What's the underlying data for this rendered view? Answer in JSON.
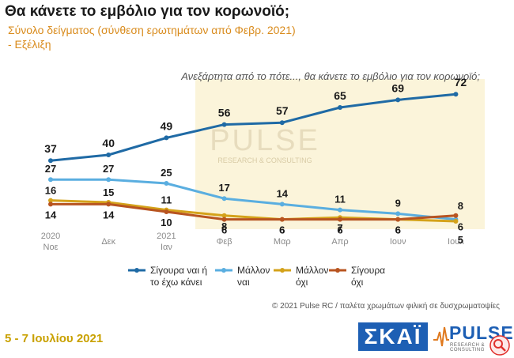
{
  "title": "Θα κάνετε το εμβόλιο για τον κορωνοϊό;",
  "subtitle_line1": "Σύνολο δείγματος (σύνθεση ερωτημάτων από Φεβρ. 2021)",
  "subtitle_line2": " - Εξέλιξη",
  "date_text": "5 - 7 Ιουλίου  2021",
  "credit": "© 2021 Pulse RC  /  παλέτα χρωμάτων φιλική σε δυσχρωματοψίες",
  "logo_skai": "ΣΚΑΪ",
  "logo_pulse": "PULSE",
  "logo_pulse_tagline": "RESEARCH & CONSULTING",
  "watermark_word": "PULSE",
  "watermark_tagline": "RESEARCH & CONSULTING",
  "chart_data": {
    "type": "line",
    "annotation": "Ανεξάρτητα από το πότε..., θα κάνετε το εμβόλιο για τον κορωνοϊό;",
    "x": [
      [
        "2020",
        "Νοε"
      ],
      [
        "Δεκ"
      ],
      [
        "2021",
        "Ιαν"
      ],
      [
        "Φεβ"
      ],
      [
        "Μαρ"
      ],
      [
        "Απρ"
      ],
      [
        "Ιουν"
      ],
      [
        "Ιουλ"
      ]
    ],
    "highlight_from_index": 3,
    "ylim": [
      0,
      80
    ],
    "grid": false,
    "legend_position": "bottom",
    "series": [
      {
        "name": "Σίγουρα ναι ή το έχω κάνει",
        "legend_lines": [
          "Σίγουρα ναι ή",
          "το έχω κάνει"
        ],
        "color": "#1f6aa5",
        "values": [
          37,
          40,
          49,
          56,
          57,
          65,
          69,
          72
        ]
      },
      {
        "name": "Μάλλον ναι",
        "legend_lines": [
          "Μάλλον",
          "ναι"
        ],
        "color": "#5aaee0",
        "values": [
          27,
          27,
          25,
          17,
          14,
          11,
          9,
          6
        ]
      },
      {
        "name": "Μάλλον όχι",
        "legend_lines": [
          "Μάλλον",
          "όχι"
        ],
        "color": "#d4a21a",
        "values": [
          16,
          15,
          11,
          8,
          6,
          7,
          6,
          5
        ]
      },
      {
        "name": "Σίγουρα όχι",
        "legend_lines": [
          "Σίγουρα",
          "όχι"
        ],
        "color": "#b85420",
        "values": [
          14,
          14,
          10,
          6,
          6,
          6,
          6,
          8
        ]
      }
    ],
    "data_labels": [
      [
        "37",
        "40",
        "49",
        "56",
        "57",
        "65",
        "69",
        "72"
      ],
      [
        "27",
        "27",
        "25",
        "17",
        "14",
        "11",
        "9",
        "6"
      ],
      [
        "16",
        "15",
        "11",
        "8",
        "6",
        "7",
        "6",
        "5"
      ],
      [
        "14",
        "14",
        "10",
        "6",
        "6",
        "6",
        "6",
        "8"
      ]
    ]
  }
}
